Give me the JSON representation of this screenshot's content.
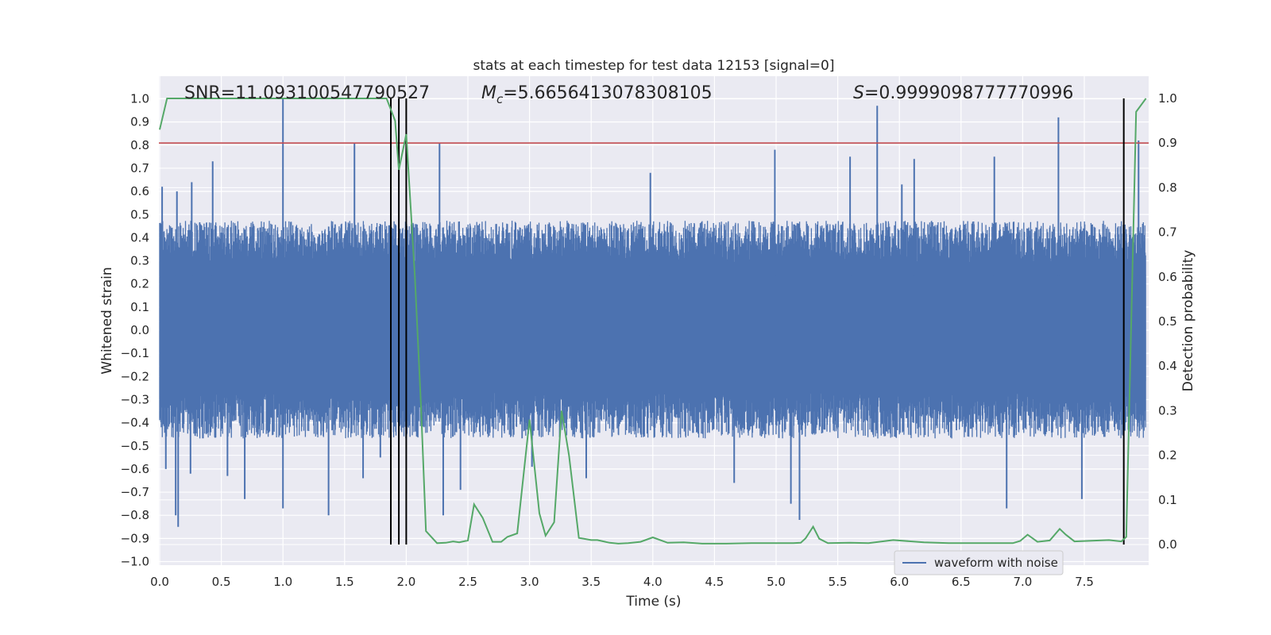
{
  "chart_data": {
    "type": "line",
    "title": "stats at each timestep for test data 12153 [signal=0]",
    "xlabel": "Time (s)",
    "ylabel": "Whitened strain",
    "y2label": "Detection probability",
    "xlim": [
      0.0,
      8.0
    ],
    "ylim": [
      -1.03,
      1.05
    ],
    "y2lim": [
      -0.045,
      1.045
    ],
    "x_ticks": [
      "0.0",
      "0.5",
      "1.0",
      "1.5",
      "2.0",
      "2.5",
      "3.0",
      "3.5",
      "4.0",
      "4.5",
      "5.0",
      "5.5",
      "6.0",
      "6.5",
      "7.0",
      "7.5"
    ],
    "y_ticks": [
      "1.0",
      "0.9",
      "0.8",
      "0.7",
      "0.6",
      "0.5",
      "0.4",
      "0.3",
      "0.2",
      "0.1",
      "0.0",
      "−0.1",
      "−0.2",
      "−0.3",
      "−0.4",
      "−0.5",
      "−0.6",
      "−0.7",
      "−0.8",
      "−0.9",
      "−1.0"
    ],
    "y2_ticks": [
      "1.0",
      "0.9",
      "0.8",
      "0.7",
      "0.6",
      "0.5",
      "0.4",
      "0.3",
      "0.2",
      "0.1",
      "0.0"
    ],
    "grid": true,
    "legend": {
      "position": "bottom-right",
      "entries": [
        "waveform with noise"
      ]
    },
    "annotations": {
      "snr": "SNR=11.093100547790527",
      "mc_symbol": "M",
      "mc_sub": "c",
      "mc_value": "=5.6656413078308105",
      "s_symbol": "S",
      "s_value": "=0.9999098777770996"
    },
    "threshold_y2": 0.9,
    "vertical_markers_x": [
      1.875,
      1.94,
      2.0,
      7.82
    ],
    "colors": {
      "waveform": "#4c72b0",
      "probability": "#55a868",
      "threshold": "#c44e52",
      "markers": "#000000",
      "plot_bg": "#eaeaf2",
      "grid": "#ffffff"
    },
    "waveform": {
      "core_band": [
        -0.36,
        0.43
      ],
      "spikes": [
        {
          "x": 0.02,
          "y": 0.62
        },
        {
          "x": 0.05,
          "y": -0.6
        },
        {
          "x": 0.13,
          "y": -0.8
        },
        {
          "x": 0.14,
          "y": 0.6
        },
        {
          "x": 0.15,
          "y": -0.85
        },
        {
          "x": 0.25,
          "y": -0.62
        },
        {
          "x": 0.26,
          "y": 0.64
        },
        {
          "x": 0.43,
          "y": 0.73
        },
        {
          "x": 0.55,
          "y": -0.63
        },
        {
          "x": 0.69,
          "y": -0.73
        },
        {
          "x": 1.0,
          "y": 1.0
        },
        {
          "x": 1.0,
          "y": -0.77
        },
        {
          "x": 1.37,
          "y": -0.8
        },
        {
          "x": 1.58,
          "y": 0.81
        },
        {
          "x": 1.65,
          "y": -0.64
        },
        {
          "x": 1.79,
          "y": -0.55
        },
        {
          "x": 2.27,
          "y": 0.81
        },
        {
          "x": 2.3,
          "y": -0.8
        },
        {
          "x": 2.44,
          "y": -0.69
        },
        {
          "x": 3.02,
          "y": -0.59
        },
        {
          "x": 3.46,
          "y": -0.64
        },
        {
          "x": 3.98,
          "y": 0.68
        },
        {
          "x": 4.66,
          "y": -0.66
        },
        {
          "x": 4.99,
          "y": 0.78
        },
        {
          "x": 5.12,
          "y": -0.75
        },
        {
          "x": 5.19,
          "y": -0.82
        },
        {
          "x": 5.6,
          "y": 0.75
        },
        {
          "x": 5.82,
          "y": 0.97
        },
        {
          "x": 6.02,
          "y": 0.63
        },
        {
          "x": 6.12,
          "y": 0.74
        },
        {
          "x": 6.77,
          "y": 0.75
        },
        {
          "x": 6.87,
          "y": -0.77
        },
        {
          "x": 7.29,
          "y": 0.92
        },
        {
          "x": 7.48,
          "y": -0.73
        },
        {
          "x": 7.94,
          "y": 0.82
        }
      ]
    },
    "series": [
      {
        "name": "",
        "axis": "y2",
        "x": [
          0.0,
          0.06,
          1.84,
          1.91,
          1.94,
          2.0,
          2.07,
          2.12,
          2.16,
          2.25,
          2.32,
          2.38,
          2.43,
          2.5,
          2.55,
          2.62,
          2.7,
          2.77,
          2.82,
          2.9,
          3.0,
          3.08,
          3.13,
          3.2,
          3.26,
          3.32,
          3.4,
          3.5,
          3.55,
          3.65,
          3.72,
          3.8,
          3.9,
          4.0,
          4.12,
          4.25,
          4.4,
          4.6,
          4.8,
          5.0,
          5.14,
          5.2,
          5.24,
          5.3,
          5.35,
          5.42,
          5.6,
          5.75,
          5.95,
          6.2,
          6.4,
          6.65,
          6.92,
          6.98,
          7.04,
          7.12,
          7.22,
          7.3,
          7.35,
          7.42,
          7.7,
          7.8,
          7.84,
          7.92,
          8.0
        ],
        "y": [
          0.93,
          1.0,
          1.0,
          0.95,
          0.84,
          0.92,
          0.6,
          0.31,
          0.03,
          0.003,
          0.004,
          0.007,
          0.005,
          0.009,
          0.09,
          0.06,
          0.006,
          0.006,
          0.017,
          0.025,
          0.28,
          0.07,
          0.02,
          0.05,
          0.3,
          0.2,
          0.015,
          0.01,
          0.01,
          0.004,
          0.002,
          0.003,
          0.006,
          0.016,
          0.004,
          0.005,
          0.002,
          0.002,
          0.003,
          0.003,
          0.003,
          0.004,
          0.014,
          0.04,
          0.013,
          0.003,
          0.004,
          0.003,
          0.01,
          0.005,
          0.003,
          0.003,
          0.003,
          0.008,
          0.022,
          0.006,
          0.009,
          0.035,
          0.022,
          0.007,
          0.01,
          0.007,
          0.017,
          0.97,
          1.0
        ]
      }
    ]
  }
}
